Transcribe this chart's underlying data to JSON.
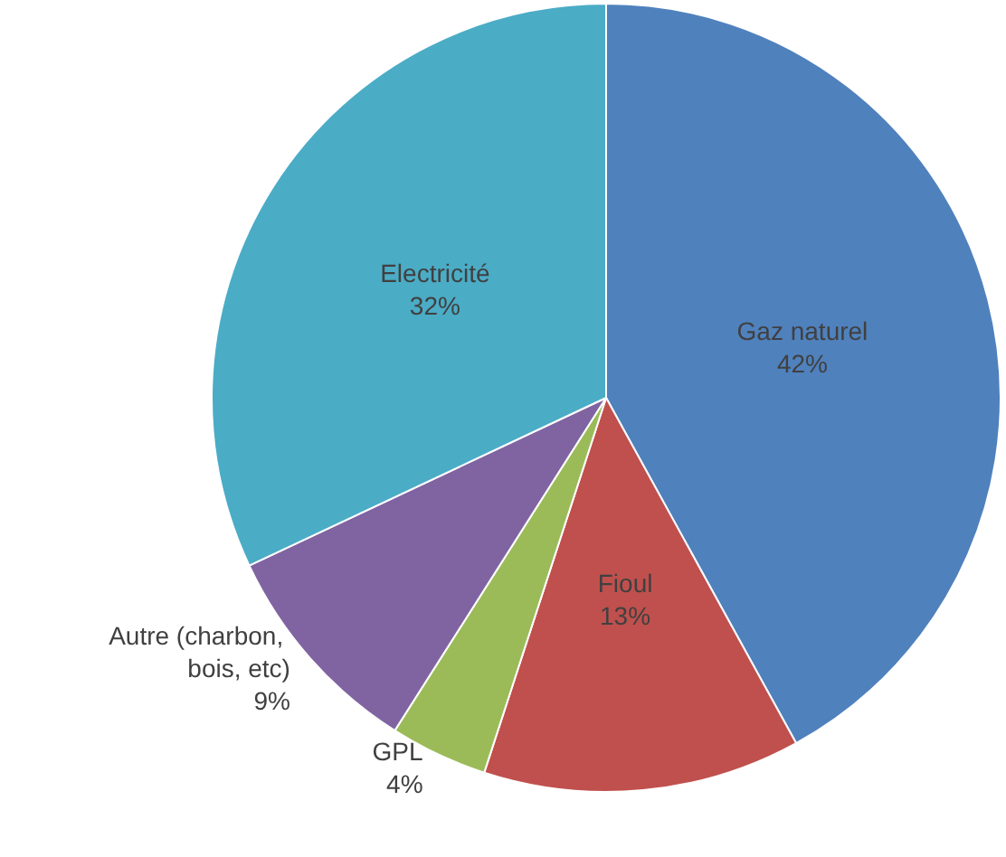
{
  "chart_data": {
    "type": "pie",
    "categories": [
      "Gaz naturel",
      "Fioul",
      "GPL",
      "Autre (charbon, bois, etc)",
      "Electricité"
    ],
    "values": [
      42,
      13,
      4,
      9,
      32
    ],
    "colors": [
      "#4f81bd",
      "#c0504d",
      "#9bbb59",
      "#8064a2",
      "#4bacc6"
    ],
    "value_labels": [
      "42%",
      "13%",
      "4%",
      "9%",
      "32%"
    ],
    "legend": false
  }
}
